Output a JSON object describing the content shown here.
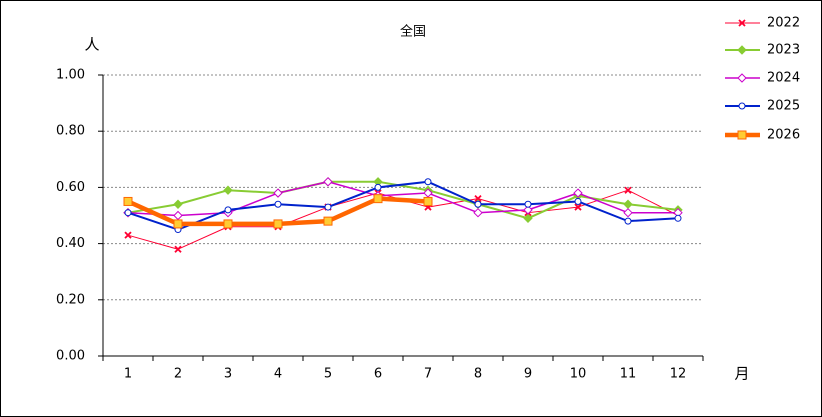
{
  "chart_data": {
    "type": "line",
    "title": "全国",
    "y_label": "人",
    "x_label": "月",
    "categories": [
      "1",
      "2",
      "3",
      "4",
      "5",
      "6",
      "7",
      "8",
      "9",
      "10",
      "11",
      "12"
    ],
    "ylim": [
      0,
      1
    ],
    "yticks": [
      {
        "value": 0,
        "label": "0.00"
      },
      {
        "value": 0.2,
        "label": "0.20"
      },
      {
        "value": 0.4,
        "label": "0.40"
      },
      {
        "value": 0.6,
        "label": "0.60"
      },
      {
        "value": 0.8,
        "label": "0.80"
      },
      {
        "value": 1,
        "label": "1.00"
      }
    ],
    "grid": true,
    "legend": "right",
    "series": [
      {
        "name": "2022",
        "color": "#ff0033",
        "marker": "x",
        "line_width": 1,
        "values": [
          0.43,
          0.38,
          0.46,
          0.46,
          0.53,
          0.58,
          0.53,
          0.56,
          0.51,
          0.53,
          0.59,
          0.5
        ]
      },
      {
        "name": "2023",
        "color": "#88cc33",
        "marker": "diamond",
        "line_width": 2,
        "values": [
          0.51,
          0.54,
          0.59,
          0.58,
          0.62,
          0.62,
          0.59,
          0.54,
          0.49,
          0.57,
          0.54,
          0.52
        ]
      },
      {
        "name": "2024",
        "color": "#cc00cc",
        "marker": "diamond-open",
        "line_width": 1.5,
        "values": [
          0.51,
          0.5,
          0.51,
          0.58,
          0.62,
          0.57,
          0.58,
          0.51,
          0.52,
          0.58,
          0.51,
          0.51
        ]
      },
      {
        "name": "2025",
        "color": "#0022cc",
        "marker": "circle-open",
        "line_width": 2,
        "values": [
          0.51,
          0.45,
          0.52,
          0.54,
          0.53,
          0.6,
          0.62,
          0.54,
          0.54,
          0.55,
          0.48,
          0.49
        ]
      },
      {
        "name": "2026",
        "color": "#ff6600",
        "marker": "square",
        "line_width": 4.5,
        "values": [
          0.55,
          0.47,
          0.47,
          0.47,
          0.48,
          0.56,
          0.55,
          null,
          null,
          null,
          null,
          null
        ]
      }
    ]
  }
}
